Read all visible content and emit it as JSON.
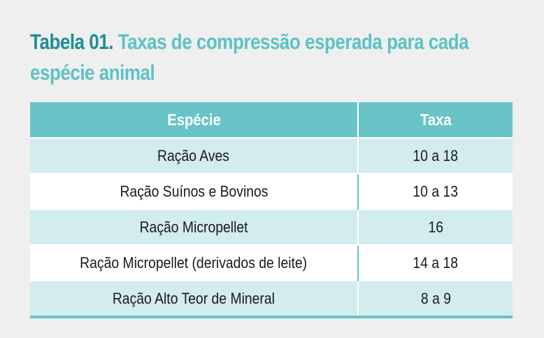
{
  "title": {
    "prefix": "Tabela 01.",
    "text": "Taxas de compressão esperada para cada espécie animal"
  },
  "table": {
    "headers": [
      "Espécie",
      "Taxa"
    ],
    "rows": [
      [
        "Ração Aves",
        "10 a 18"
      ],
      [
        "Ração Suínos e Bovinos",
        "10 a 13"
      ],
      [
        "Ração Micropellet",
        "16"
      ],
      [
        "Ração Micropellet (derivados de leite)",
        "14 a 18"
      ],
      [
        "Ração Alto Teor de Mineral",
        "8 a 9"
      ]
    ]
  },
  "colors": {
    "title_prefix": "#1e8f95",
    "title_text": "#5fc1c4",
    "header_bg": "#68c4c6",
    "row_alt_bg": "#d3ecee",
    "row_bg": "#ffffff",
    "page_bg": "#efefef"
  }
}
